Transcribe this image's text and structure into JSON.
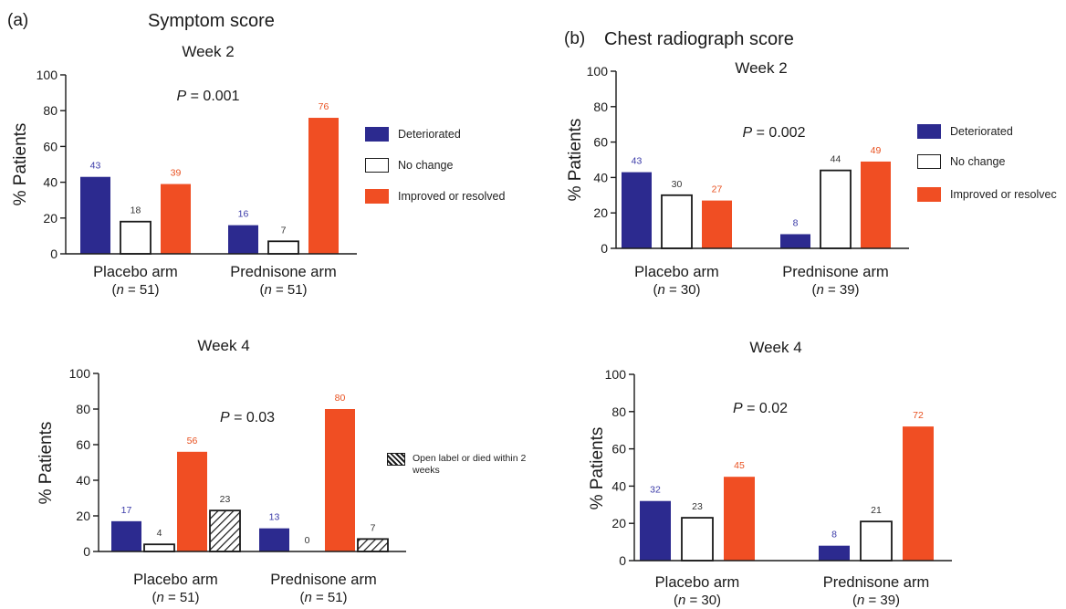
{
  "colors": {
    "deteriorated": "#2c2a8f",
    "no_change": "#ffffff",
    "improved": "#f04e23",
    "open_label": "hatched"
  },
  "panels": [
    {
      "id": "a",
      "label": "(a)",
      "title": "Symptom score"
    },
    {
      "id": "b",
      "label": "(b)",
      "title": "Chest radiograph score"
    }
  ],
  "legends": {
    "a": [
      "Deteriorated",
      "No change",
      "Improved or resolved"
    ],
    "a_week4": [
      "Open label or died within 2 weeks"
    ],
    "b": [
      "Deteriorated",
      "No change",
      "Improved or resolvec"
    ]
  },
  "chart_data": [
    {
      "id": "a-week2",
      "type": "bar",
      "title": "Week 2",
      "annotation": "P = 0.001",
      "ylabel": "% Patients",
      "ylim": [
        0,
        100
      ],
      "yticks": [
        0,
        20,
        40,
        60,
        80,
        100
      ],
      "categories": [
        "Placebo arm",
        "Prednisone arm"
      ],
      "category_n": [
        "(n = 51)",
        "(n = 51)"
      ],
      "series": [
        {
          "name": "Deteriorated",
          "values": [
            43,
            16
          ]
        },
        {
          "name": "No change",
          "values": [
            18,
            7
          ]
        },
        {
          "name": "Improved or resolved",
          "values": [
            39,
            76
          ]
        }
      ]
    },
    {
      "id": "a-week4",
      "type": "bar",
      "title": "Week 4",
      "annotation": "P = 0.03",
      "ylabel": "% Patients",
      "ylim": [
        0,
        100
      ],
      "yticks": [
        0,
        20,
        40,
        60,
        80,
        100
      ],
      "categories": [
        "Placebo arm",
        "Prednisone arm"
      ],
      "category_n": [
        "(n = 51)",
        "(n = 51)"
      ],
      "series": [
        {
          "name": "Deteriorated",
          "values": [
            17,
            13
          ]
        },
        {
          "name": "No change",
          "values": [
            4,
            0
          ]
        },
        {
          "name": "Improved or resolved",
          "values": [
            56,
            80
          ]
        },
        {
          "name": "Open label or died within 2 weeks",
          "values": [
            23,
            7
          ]
        }
      ]
    },
    {
      "id": "b-week2",
      "type": "bar",
      "title": "Week 2",
      "annotation": "P = 0.002",
      "ylabel": "% Patients",
      "ylim": [
        0,
        100
      ],
      "yticks": [
        0,
        20,
        40,
        60,
        80,
        100
      ],
      "categories": [
        "Placebo arm",
        "Prednisone arm"
      ],
      "category_n": [
        "(n = 30)",
        "(n = 39)"
      ],
      "series": [
        {
          "name": "Deteriorated",
          "values": [
            43,
            8
          ]
        },
        {
          "name": "No change",
          "values": [
            30,
            44
          ]
        },
        {
          "name": "Improved or resolvec",
          "values": [
            27,
            49
          ]
        }
      ]
    },
    {
      "id": "b-week4",
      "type": "bar",
      "title": "Week 4",
      "annotation": "P = 0.02",
      "ylabel": "% Patients",
      "ylim": [
        0,
        100
      ],
      "yticks": [
        0,
        20,
        40,
        60,
        80,
        100
      ],
      "categories": [
        "Placebo arm",
        "Prednisone arm"
      ],
      "category_n": [
        "(n = 30)",
        "(n = 39)"
      ],
      "series": [
        {
          "name": "Deteriorated",
          "values": [
            32,
            8
          ]
        },
        {
          "name": "No change",
          "values": [
            23,
            21
          ]
        },
        {
          "name": "Improved or resolvec",
          "values": [
            45,
            72
          ]
        }
      ]
    }
  ]
}
